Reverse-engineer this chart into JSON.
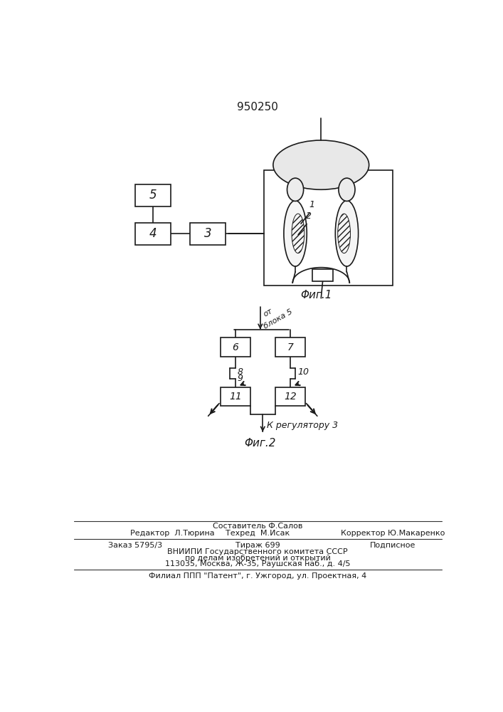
{
  "patent_number": "950250",
  "fig1_label": "Φиг.1",
  "fig2_label": "Φиг.2",
  "box5_label": "5",
  "box4_label": "4",
  "box3_label": "3",
  "label1": "1",
  "label2": "2",
  "box6_label": "6",
  "box7_label": "7",
  "box11_label": "11",
  "box12_label": "12",
  "label8": "8",
  "label9": "9",
  "label10": "10",
  "from_block5_line1": "от",
  "from_block5_line2": "блока 5",
  "to_regulator": "К регулятору 3",
  "footer_line1": "Составитель Ф.Салов",
  "footer_line2_left": "Редактор  Л.Тюрина",
  "footer_line2_mid": "Техред  М.Исак",
  "footer_line2_right": "Корректор Ю.Макаренко",
  "footer_line3_left": "Заказ 5795/3",
  "footer_line3_mid": "Тираж 699",
  "footer_line3_right": "Подписное",
  "footer_line4": "ВНИИПИ Государственного комитета СССР",
  "footer_line5": "по делам изобретений и открытий",
  "footer_line6": "113035, Москва, Ж-35, Раушская наб., д. 4/5",
  "footer_line7": "Филиал ППП \"Патент\", г. Ужгород, ул. Проектная, 4",
  "line_color": "#1a1a1a",
  "bg_color": "#ffffff"
}
